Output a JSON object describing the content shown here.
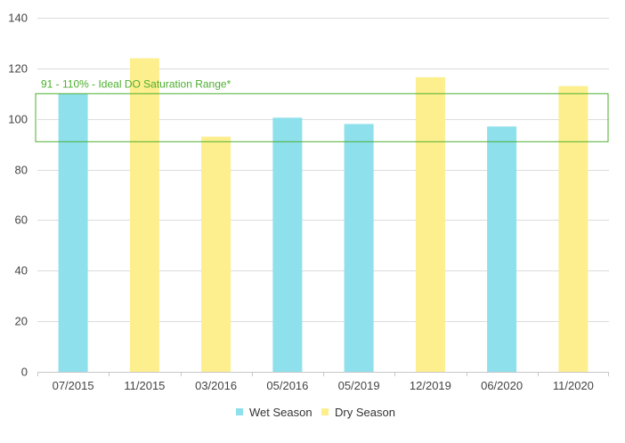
{
  "chart_data": {
    "type": "bar",
    "categories": [
      "07/2015",
      "11/2015",
      "03/2016",
      "05/2016",
      "05/2019",
      "12/2019",
      "06/2020",
      "11/2020"
    ],
    "values": [
      110,
      124,
      93,
      100.5,
      98,
      116.5,
      97,
      113
    ],
    "season": [
      "Wet Season",
      "Dry Season",
      "Dry Season",
      "Wet Season",
      "Wet Season",
      "Dry Season",
      "Wet Season",
      "Dry Season"
    ],
    "series": [
      {
        "name": "Wet Season",
        "color": "#8ee0ec"
      },
      {
        "name": "Dry Season",
        "color": "#fdee8e"
      }
    ],
    "ylim": [
      0,
      140
    ],
    "yticks": [
      0,
      20,
      40,
      60,
      80,
      100,
      120,
      140
    ],
    "grid": true,
    "legend_position": "bottom",
    "band": {
      "low": 91,
      "high": 110,
      "label": "91 - 110% - Ideal DO Saturation Range*",
      "color": "#4caf2e"
    }
  }
}
